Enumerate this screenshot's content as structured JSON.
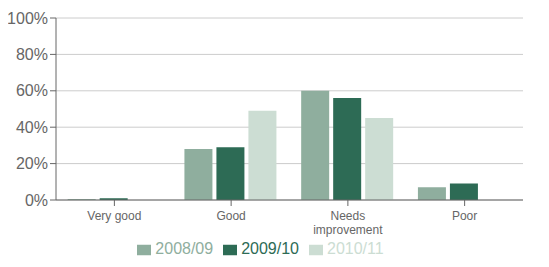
{
  "chart_data": {
    "type": "bar",
    "categories": [
      "Very good",
      "Good",
      "Needs\nimprovement",
      "Poor"
    ],
    "series": [
      {
        "name": "2008/09",
        "color": "#8fae9e",
        "values": [
          0.5,
          28,
          60,
          7
        ]
      },
      {
        "name": "2009/10",
        "color": "#2d6b55",
        "values": [
          1,
          29,
          56,
          9
        ]
      },
      {
        "name": "2010/11",
        "color": "#ccddd3",
        "values": [
          0,
          49,
          45,
          0
        ]
      }
    ],
    "ylim": [
      0,
      100
    ],
    "yticks": [
      {
        "value": 0,
        "label": "0%"
      },
      {
        "value": 20,
        "label": "20%"
      },
      {
        "value": 40,
        "label": "40%"
      },
      {
        "value": 60,
        "label": "60%"
      },
      {
        "value": 80,
        "label": "80%"
      },
      {
        "value": 100,
        "label": "100%"
      }
    ],
    "grid": true,
    "legend": "bottom"
  }
}
